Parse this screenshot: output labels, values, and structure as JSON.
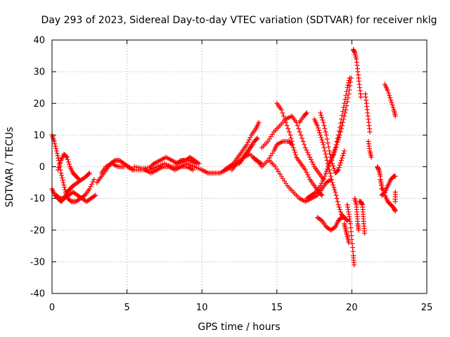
{
  "chart_data": {
    "type": "scatter",
    "title": "Day 293 of 2023, Sidereal Day-to-day VTEC variation (SDTVAR) for receiver nklg",
    "xlabel": "GPS time / hours",
    "ylabel": "SDTVAR / TECUs",
    "xlim": [
      0,
      25
    ],
    "ylim": [
      -40,
      40
    ],
    "xticks": [
      "0",
      "5",
      "10",
      "15",
      "20",
      "25"
    ],
    "yticks": [
      "-40",
      "-30",
      "-20",
      "-10",
      "0",
      "10",
      "20",
      "30",
      "40"
    ],
    "grid": true,
    "marker": "+",
    "color": "#ff0000",
    "series": [
      {
        "name": "s1",
        "points": [
          [
            0.0,
            10
          ],
          [
            0.15,
            8
          ],
          [
            0.3,
            5
          ],
          [
            0.45,
            2
          ],
          [
            0.6,
            -2
          ],
          [
            0.75,
            -5
          ],
          [
            0.9,
            -8
          ],
          [
            1.05,
            -10
          ],
          [
            1.3,
            -11
          ],
          [
            1.6,
            -11
          ],
          [
            1.9,
            -10
          ],
          [
            2.2,
            -9
          ],
          [
            2.5,
            -7
          ],
          [
            2.8,
            -4
          ]
        ]
      },
      {
        "name": "s2",
        "points": [
          [
            0.0,
            -7
          ],
          [
            0.2,
            -9
          ],
          [
            0.4,
            -10
          ],
          [
            0.6,
            -11
          ],
          [
            0.8,
            -10
          ],
          [
            1.0,
            -8
          ],
          [
            1.2,
            -7
          ],
          [
            1.4,
            -6
          ],
          [
            1.7,
            -5
          ],
          [
            2.0,
            -4
          ],
          [
            2.3,
            -3
          ],
          [
            2.5,
            -2
          ]
        ]
      },
      {
        "name": "s3",
        "points": [
          [
            0.4,
            -1
          ],
          [
            0.6,
            2
          ],
          [
            0.8,
            4
          ],
          [
            1.0,
            3
          ],
          [
            1.2,
            0
          ],
          [
            1.4,
            -2
          ],
          [
            1.6,
            -3
          ],
          [
            1.8,
            -4
          ]
        ]
      },
      {
        "name": "s4",
        "points": [
          [
            0.3,
            -9
          ],
          [
            0.5,
            -10
          ],
          [
            0.8,
            -10
          ],
          [
            1.1,
            -9
          ],
          [
            1.4,
            -8
          ],
          [
            1.7,
            -9
          ],
          [
            2.0,
            -10
          ],
          [
            2.3,
            -11
          ],
          [
            2.6,
            -10
          ],
          [
            2.9,
            -9
          ]
        ]
      },
      {
        "name": "s5",
        "points": [
          [
            3.0,
            -5
          ],
          [
            3.3,
            -3
          ],
          [
            3.6,
            -1
          ],
          [
            3.9,
            1
          ],
          [
            4.2,
            2
          ],
          [
            4.5,
            2
          ],
          [
            4.8,
            1
          ],
          [
            5.1,
            0
          ],
          [
            5.4,
            -1
          ]
        ]
      },
      {
        "name": "s6",
        "points": [
          [
            3.3,
            -2
          ],
          [
            3.6,
            0
          ],
          [
            4.0,
            1
          ],
          [
            4.4,
            0
          ],
          [
            4.8,
            0
          ]
        ]
      },
      {
        "name": "s7",
        "points": [
          [
            5.0,
            0
          ],
          [
            5.5,
            -1
          ],
          [
            6.0,
            -1
          ],
          [
            6.5,
            -1
          ],
          [
            7.0,
            0
          ],
          [
            7.5,
            1
          ],
          [
            8.0,
            0
          ],
          [
            8.5,
            0
          ],
          [
            9.0,
            1
          ],
          [
            9.5,
            0
          ],
          [
            10.0,
            -1
          ]
        ]
      },
      {
        "name": "s8",
        "points": [
          [
            5.5,
            0
          ],
          [
            6.0,
            -0.5
          ],
          [
            6.5,
            -0.3
          ],
          [
            6.8,
            1
          ],
          [
            7.2,
            2
          ],
          [
            7.6,
            3
          ],
          [
            8.0,
            2
          ],
          [
            8.4,
            1
          ],
          [
            8.8,
            2
          ],
          [
            9.2,
            2
          ],
          [
            9.6,
            1
          ]
        ]
      },
      {
        "name": "s9",
        "points": [
          [
            6.2,
            -1
          ],
          [
            6.6,
            -2
          ],
          [
            7.0,
            -1
          ],
          [
            7.4,
            0
          ],
          [
            7.8,
            0
          ],
          [
            8.2,
            -1
          ],
          [
            8.6,
            0
          ],
          [
            9.0,
            0
          ],
          [
            9.4,
            -1
          ]
        ]
      },
      {
        "name": "s10",
        "points": [
          [
            8.3,
            1
          ],
          [
            8.6,
            2
          ],
          [
            8.9,
            2
          ],
          [
            9.2,
            3
          ],
          [
            9.5,
            2
          ],
          [
            9.8,
            1
          ]
        ]
      },
      {
        "name": "s11",
        "points": [
          [
            10.0,
            -1
          ],
          [
            10.4,
            -2
          ],
          [
            10.8,
            -2
          ],
          [
            11.2,
            -2
          ],
          [
            11.6,
            -1
          ],
          [
            12.0,
            0
          ],
          [
            12.4,
            1
          ],
          [
            12.8,
            3
          ],
          [
            13.2,
            4
          ],
          [
            13.6,
            2
          ],
          [
            14.0,
            1
          ]
        ]
      },
      {
        "name": "s12",
        "points": [
          [
            11.5,
            -1
          ],
          [
            11.8,
            0
          ],
          [
            12.1,
            1
          ],
          [
            12.4,
            3
          ],
          [
            12.7,
            5
          ],
          [
            13.0,
            7
          ],
          [
            13.3,
            10
          ],
          [
            13.6,
            12
          ],
          [
            13.8,
            14
          ]
        ]
      },
      {
        "name": "s13",
        "points": [
          [
            12.0,
            -1
          ],
          [
            12.3,
            1
          ],
          [
            12.6,
            2
          ],
          [
            12.9,
            4
          ],
          [
            13.2,
            6
          ],
          [
            13.5,
            8
          ],
          [
            13.7,
            9
          ]
        ]
      },
      {
        "name": "s14",
        "points": [
          [
            12.5,
            1
          ],
          [
            12.8,
            3
          ],
          [
            13.1,
            5
          ],
          [
            13.4,
            7
          ]
        ]
      },
      {
        "name": "s15",
        "points": [
          [
            13.4,
            3
          ],
          [
            13.7,
            2
          ],
          [
            14.0,
            0
          ],
          [
            14.4,
            2
          ],
          [
            14.8,
            5
          ],
          [
            15.0,
            7
          ],
          [
            15.4,
            8
          ],
          [
            15.8,
            8
          ],
          [
            16.0,
            7
          ]
        ]
      },
      {
        "name": "s16",
        "points": [
          [
            14.0,
            6
          ],
          [
            14.4,
            8
          ],
          [
            14.8,
            11
          ],
          [
            15.2,
            13
          ],
          [
            15.6,
            15
          ],
          [
            16.0,
            16
          ],
          [
            16.3,
            14
          ],
          [
            16.6,
            10
          ],
          [
            16.9,
            6
          ],
          [
            17.2,
            3
          ],
          [
            17.5,
            0
          ],
          [
            17.8,
            -2
          ],
          [
            18.1,
            -4
          ]
        ]
      },
      {
        "name": "s17",
        "points": [
          [
            15.0,
            20
          ],
          [
            15.3,
            18
          ],
          [
            15.6,
            14
          ],
          [
            15.9,
            10
          ],
          [
            16.1,
            6
          ],
          [
            16.3,
            3
          ],
          [
            16.6,
            1
          ],
          [
            16.9,
            -1
          ],
          [
            17.2,
            -4
          ],
          [
            17.5,
            -6
          ],
          [
            17.8,
            -8
          ],
          [
            18.0,
            -9
          ]
        ]
      },
      {
        "name": "s18",
        "points": [
          [
            14.5,
            2
          ],
          [
            14.9,
            0
          ],
          [
            15.3,
            -3
          ],
          [
            15.7,
            -6
          ],
          [
            16.1,
            -8
          ],
          [
            16.5,
            -10
          ],
          [
            16.9,
            -11
          ],
          [
            17.3,
            -10
          ],
          [
            17.7,
            -9
          ],
          [
            18.0,
            -7
          ],
          [
            18.3,
            -5
          ],
          [
            18.6,
            -4
          ]
        ]
      },
      {
        "name": "s19",
        "points": [
          [
            16.5,
            14
          ],
          [
            16.8,
            16
          ],
          [
            17.0,
            17
          ]
        ]
      },
      {
        "name": "s20",
        "points": [
          [
            17.0,
            -10
          ],
          [
            17.3,
            -9
          ],
          [
            17.6,
            -8
          ],
          [
            17.9,
            -6
          ],
          [
            18.2,
            -3
          ],
          [
            18.4,
            0
          ],
          [
            18.6,
            2
          ],
          [
            18.8,
            4
          ],
          [
            19.0,
            7
          ],
          [
            19.2,
            10
          ],
          [
            19.4,
            14
          ],
          [
            19.6,
            18
          ],
          [
            19.8,
            23
          ],
          [
            19.95,
            28
          ]
        ]
      },
      {
        "name": "s21",
        "points": [
          [
            17.5,
            15
          ],
          [
            17.7,
            13
          ],
          [
            17.9,
            10
          ],
          [
            18.1,
            7
          ],
          [
            18.3,
            3
          ],
          [
            18.5,
            -1
          ],
          [
            18.7,
            -5
          ],
          [
            18.9,
            -8
          ],
          [
            19.1,
            -12
          ],
          [
            19.3,
            -15
          ],
          [
            19.5,
            -16
          ]
        ]
      },
      {
        "name": "s22",
        "points": [
          [
            17.9,
            17
          ],
          [
            18.1,
            14
          ],
          [
            18.3,
            10
          ],
          [
            18.5,
            5
          ],
          [
            18.7,
            1
          ],
          [
            18.9,
            -2
          ],
          [
            19.1,
            -1
          ],
          [
            19.3,
            2
          ],
          [
            19.5,
            5
          ]
        ]
      },
      {
        "name": "s23",
        "points": [
          [
            17.7,
            -16
          ],
          [
            18.0,
            -17
          ],
          [
            18.3,
            -19
          ],
          [
            18.6,
            -20
          ],
          [
            18.9,
            -19
          ],
          [
            19.1,
            -17
          ],
          [
            19.3,
            -16
          ],
          [
            19.5,
            -16
          ],
          [
            19.7,
            -17
          ]
        ]
      },
      {
        "name": "s24",
        "points": [
          [
            18.7,
            3
          ],
          [
            18.9,
            6
          ],
          [
            19.1,
            10
          ],
          [
            19.3,
            15
          ],
          [
            19.5,
            20
          ],
          [
            19.7,
            25
          ],
          [
            19.85,
            28
          ]
        ]
      },
      {
        "name": "s25",
        "points": [
          [
            19.5,
            -18
          ],
          [
            19.6,
            -20
          ],
          [
            19.7,
            -22
          ],
          [
            19.8,
            -24
          ]
        ]
      },
      {
        "name": "s26",
        "points": [
          [
            19.7,
            -12
          ],
          [
            19.8,
            -15
          ],
          [
            19.9,
            -18
          ],
          [
            20.0,
            -23
          ],
          [
            20.1,
            -28
          ],
          [
            20.15,
            -31
          ]
        ]
      },
      {
        "name": "s27",
        "points": [
          [
            20.1,
            37
          ],
          [
            20.2,
            36
          ],
          [
            20.3,
            34
          ],
          [
            20.4,
            30
          ],
          [
            20.5,
            26
          ],
          [
            20.6,
            22
          ]
        ]
      },
      {
        "name": "s28",
        "points": [
          [
            20.2,
            -10
          ],
          [
            20.3,
            -12
          ],
          [
            20.35,
            -15
          ],
          [
            20.4,
            -18
          ],
          [
            20.45,
            -20
          ]
        ]
      },
      {
        "name": "s29",
        "points": [
          [
            20.5,
            -11
          ],
          [
            20.6,
            -11
          ],
          [
            20.7,
            -12
          ],
          [
            20.75,
            -15
          ],
          [
            20.8,
            -18
          ],
          [
            20.85,
            -21
          ]
        ]
      },
      {
        "name": "s30",
        "points": [
          [
            20.9,
            23
          ],
          [
            21.0,
            19
          ],
          [
            21.1,
            15
          ],
          [
            21.2,
            11
          ]
        ]
      },
      {
        "name": "s31",
        "points": [
          [
            21.1,
            8
          ],
          [
            21.2,
            5
          ],
          [
            21.3,
            3
          ]
        ]
      },
      {
        "name": "s32",
        "points": [
          [
            21.7,
            0
          ],
          [
            21.8,
            -1
          ],
          [
            21.9,
            -3
          ],
          [
            22.0,
            -7
          ]
        ]
      },
      {
        "name": "s33",
        "points": [
          [
            21.9,
            -4
          ],
          [
            22.0,
            -6
          ],
          [
            22.2,
            -9
          ],
          [
            22.4,
            -11
          ],
          [
            22.6,
            -12
          ],
          [
            22.8,
            -13
          ],
          [
            22.9,
            -14
          ]
        ]
      },
      {
        "name": "s34",
        "points": [
          [
            22.0,
            -9
          ],
          [
            22.2,
            -8
          ],
          [
            22.4,
            -6
          ],
          [
            22.6,
            -4
          ],
          [
            22.8,
            -3
          ],
          [
            22.9,
            -3
          ]
        ]
      },
      {
        "name": "s35",
        "points": [
          [
            22.2,
            26
          ],
          [
            22.4,
            24
          ],
          [
            22.6,
            21
          ],
          [
            22.8,
            18
          ],
          [
            22.9,
            16
          ]
        ]
      },
      {
        "name": "s36",
        "points": [
          [
            22.9,
            -8
          ],
          [
            22.9,
            -11
          ]
        ]
      }
    ]
  }
}
